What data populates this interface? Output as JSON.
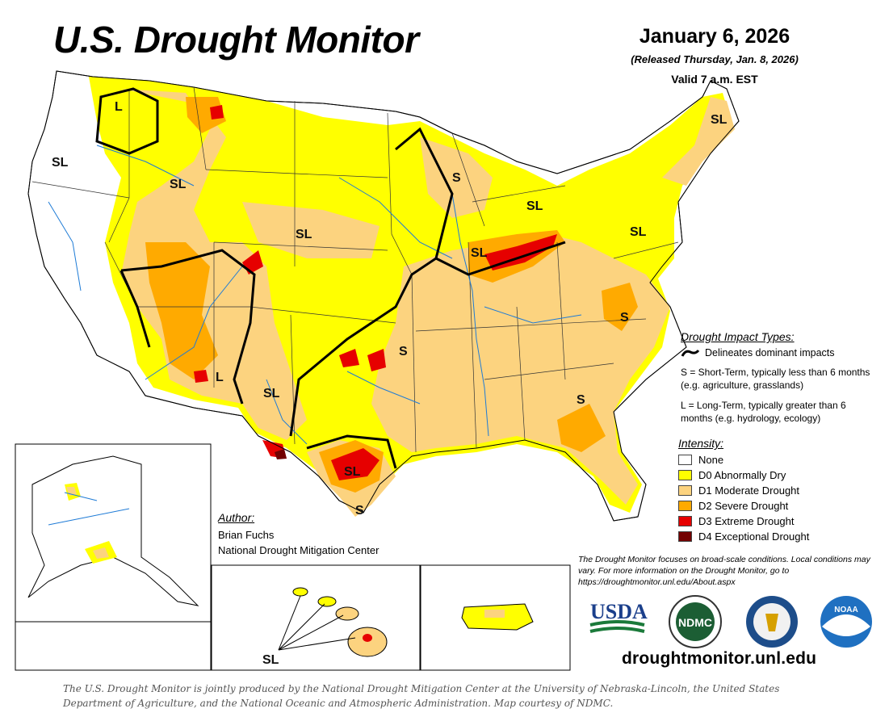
{
  "header": {
    "title": "U.S. Drought Monitor",
    "date": "January 6, 2026",
    "released": "(Released Thursday, Jan. 8, 2026)",
    "valid": "Valid 7 a.m. EST"
  },
  "impact_types": {
    "heading": "Drought Impact Types:",
    "delineates": "Delineates dominant impacts",
    "short_term": "S = Short-Term, typically less than 6 months (e.g. agriculture, grasslands)",
    "long_term": "L = Long-Term, typically greater than 6 months (e.g. hydrology, ecology)"
  },
  "intensity": {
    "heading": "Intensity:",
    "levels": [
      {
        "label": "None",
        "color": "#ffffff"
      },
      {
        "label": "D0 Abnormally Dry",
        "color": "#ffff00"
      },
      {
        "label": "D1 Moderate Drought",
        "color": "#fcd37f"
      },
      {
        "label": "D2 Severe Drought",
        "color": "#ffaa00"
      },
      {
        "label": "D3 Extreme Drought",
        "color": "#e60000"
      },
      {
        "label": "D4 Exceptional Drought",
        "color": "#730000"
      }
    ]
  },
  "author": {
    "heading": "Author:",
    "name": "Brian Fuchs",
    "org": "National Drought Mitigation Center"
  },
  "disclaimer": "The Drought Monitor focuses on broad-scale conditions. Local conditions may vary. For more information on the Drought Monitor, go to https://droughtmonitor.unl.edu/About.aspx",
  "logos": {
    "usda": "USDA",
    "ndmc": "NDMC",
    "noaa": "NOAA"
  },
  "website": "droughtmonitor.unl.edu",
  "credits": "The U.S. Drought Monitor is jointly produced by the National Drought Mitigation Center at the University of Nebraska-Lincoln, the United States Department of Agriculture, and the National Oceanic and Atmospheric Administration. Map courtesy of NDMC.",
  "map_labels": {
    "long": "L",
    "short": "S",
    "short_long": "SL"
  }
}
